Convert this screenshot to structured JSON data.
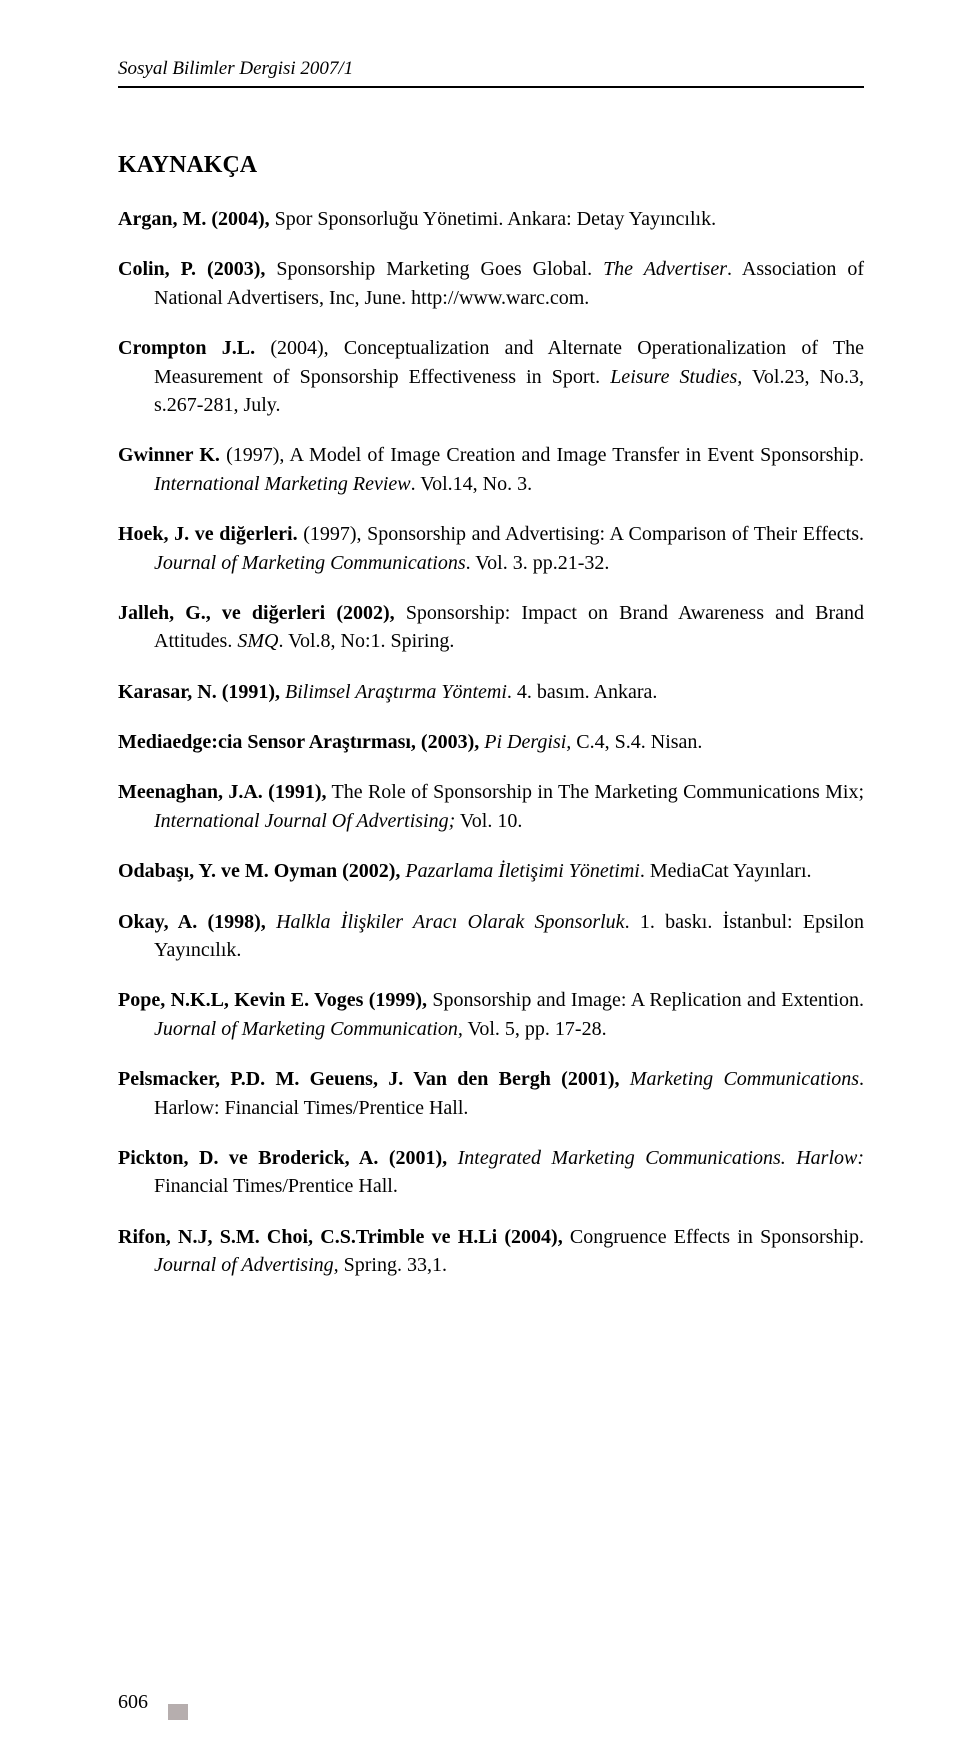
{
  "runningHead": "Sosyal Bilimler Dergisi 2007/1",
  "sectionTitle": "KAYNAKÇA",
  "pageNumber": "606",
  "refs": [
    [
      {
        "t": "Argan, M. (2004),",
        "c": "b"
      },
      {
        "t": " Spor Sponsorluğu Yönetimi. Ankara: Detay Yayıncılık."
      }
    ],
    [
      {
        "t": "Colin, P. (2003),",
        "c": "b"
      },
      {
        "t": " Sponsorship Marketing Goes Global. "
      },
      {
        "t": "The Advertiser",
        "c": "i"
      },
      {
        "t": ". Association of National Advertisers, Inc, June. http://www.warc.com."
      }
    ],
    [
      {
        "t": "Crompton J.L.",
        "c": "b"
      },
      {
        "t": " (2004), Conceptualization and Alternate Operationalization of The Measurement of Sponsorship Effectiveness in Sport. "
      },
      {
        "t": "Leisure Studies,",
        "c": "i"
      },
      {
        "t": " Vol.23, No.3, s.267-281, July."
      }
    ],
    [
      {
        "t": "Gwinner K.",
        "c": "b"
      },
      {
        "t": " (1997), A Model of Image Creation and Image Transfer in Event Sponsorship. "
      },
      {
        "t": "International Marketing Review",
        "c": "i"
      },
      {
        "t": ". Vol.14, No. 3."
      }
    ],
    [
      {
        "t": "Hoek, J. ve diğerleri.",
        "c": "b"
      },
      {
        "t": " (1997), Sponsorship and Advertising: A Comparison of Their Effects. "
      },
      {
        "t": "Journal of Marketing Communications",
        "c": "i"
      },
      {
        "t": ". Vol. 3. pp.21-32."
      }
    ],
    [
      {
        "t": "Jalleh, G., ve diğerleri (2002),",
        "c": "b"
      },
      {
        "t": " Sponsorship: Impact on Brand Awareness and Brand Attitudes. "
      },
      {
        "t": "SMQ",
        "c": "i"
      },
      {
        "t": ". Vol.8, No:1. Spiring."
      }
    ],
    [
      {
        "t": "Karasar, N. (1991),",
        "c": "b"
      },
      {
        "t": " "
      },
      {
        "t": "Bilimsel Araştırma Yöntemi",
        "c": "i"
      },
      {
        "t": ". 4. basım. Ankara."
      }
    ],
    [
      {
        "t": "Mediaedge:cia Sensor Araştırması, (2003),",
        "c": "b"
      },
      {
        "t": " "
      },
      {
        "t": "Pi Dergisi,",
        "c": "i"
      },
      {
        "t": " C.4, S.4. Nisan."
      }
    ],
    [
      {
        "t": "Meenaghan, J.A. (1991),",
        "c": "b"
      },
      {
        "t": " The Role of Sponsorship in The Marketing Communications Mix; "
      },
      {
        "t": "International Journal Of Advertising;",
        "c": "i"
      },
      {
        "t": " Vol. 10."
      }
    ],
    [
      {
        "t": "Odabaşı, Y. ve M. Oyman (2002),",
        "c": "b"
      },
      {
        "t": " "
      },
      {
        "t": "Pazarlama İletişimi Yönetimi",
        "c": "i"
      },
      {
        "t": ". MediaCat Yayınları."
      }
    ],
    [
      {
        "t": "Okay, A. (1998),",
        "c": "b"
      },
      {
        "t": " "
      },
      {
        "t": "Halkla İlişkiler Aracı Olarak Sponsorluk",
        "c": "i"
      },
      {
        "t": ". 1. baskı. İstanbul: Epsilon Yayıncılık."
      }
    ],
    [
      {
        "t": "Pope, N.K.L, Kevin E. Voges (1999),",
        "c": "b"
      },
      {
        "t": " Sponsorship and Image: A Replication and Extention. "
      },
      {
        "t": "Juornal of Marketing Communication,",
        "c": "i"
      },
      {
        "t": " Vol. 5, pp. 17-28."
      }
    ],
    [
      {
        "t": "Pelsmacker, P.D. M. Geuens, J. Van den Bergh (2001),",
        "c": "b"
      },
      {
        "t": " "
      },
      {
        "t": "Marketing Communications",
        "c": "i"
      },
      {
        "t": ". Harlow: Financial Times/Prentice Hall."
      }
    ],
    [
      {
        "t": "Pickton, D. ve Broderick, A. (2001),",
        "c": "b"
      },
      {
        "t": " "
      },
      {
        "t": "Integrated Marketing Communications. Harlow:",
        "c": "i"
      },
      {
        "t": " Financial Times/Prentice Hall."
      }
    ],
    [
      {
        "t": "Rifon, N.J, S.M. Choi, C.S.Trimble ve H.Li (2004),",
        "c": "b"
      },
      {
        "t": " Congruence Effects in Sponsorship. "
      },
      {
        "t": "Journal of Advertising,",
        "c": "i"
      },
      {
        "t": " Spring. 33,1."
      }
    ]
  ]
}
